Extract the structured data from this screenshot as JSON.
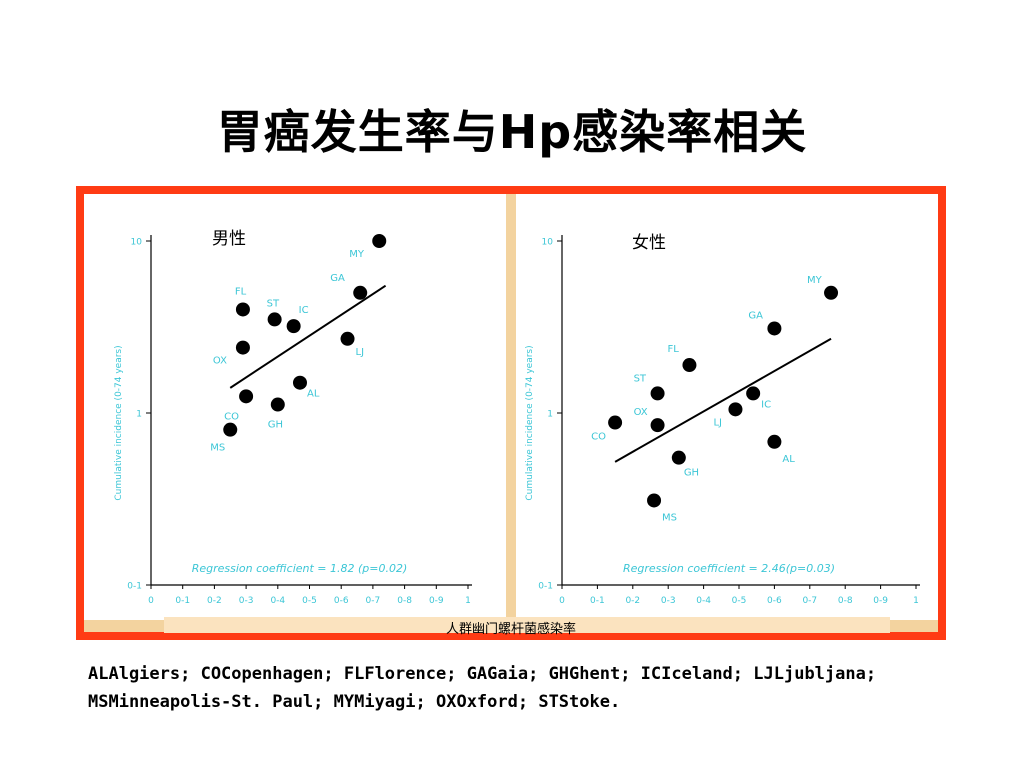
{
  "slide": {
    "title": "胃癌发生率与Hp感染率相关",
    "footnote_line1": "ALAlgiers; COCopenhagen; FLFlorence; GAGaia; GHGhent; ICIceland; LJLjubljana;",
    "footnote_line2": "MSMinneapolis-St. Paul; MYMiyagi; OXOxford; STStoke.",
    "xaxis_label": "人群幽门螺杆菌感染率"
  },
  "colors": {
    "frame": "#ff3b14",
    "frame_fill": "#f3d39f",
    "axis_text": "#3cc6d6",
    "points": "#000000"
  },
  "chart_data": [
    {
      "type": "scatter",
      "panel_label": "男性",
      "ylabel": "Cumulative incidence (0-74 years)",
      "y_scale": "log",
      "ylim": [
        0.1,
        10
      ],
      "xlim": [
        0,
        1
      ],
      "y_ticks": [
        "10",
        "1",
        "0-1"
      ],
      "x_ticks": [
        "0",
        "0-1",
        "0-2",
        "0-3",
        "0-4",
        "0-5",
        "0-6",
        "0-7",
        "0-8",
        "0-9",
        "1"
      ],
      "annotation": "Regression coefficient = 1.82 (p=0.02)",
      "points": [
        {
          "label": "MY",
          "x": 0.72,
          "y": 10.0
        },
        {
          "label": "GA",
          "x": 0.66,
          "y": 5.0
        },
        {
          "label": "FL",
          "x": 0.29,
          "y": 4.0
        },
        {
          "label": "ST",
          "x": 0.39,
          "y": 3.5
        },
        {
          "label": "IC",
          "x": 0.45,
          "y": 3.2
        },
        {
          "label": "LJ",
          "x": 0.62,
          "y": 2.7
        },
        {
          "label": "OX",
          "x": 0.29,
          "y": 2.4
        },
        {
          "label": "AL",
          "x": 0.47,
          "y": 1.5
        },
        {
          "label": "CO",
          "x": 0.3,
          "y": 1.25
        },
        {
          "label": "GH",
          "x": 0.4,
          "y": 1.12
        },
        {
          "label": "MS",
          "x": 0.25,
          "y": 0.8
        }
      ],
      "regression": {
        "x": [
          0.25,
          0.74
        ],
        "y": [
          1.4,
          5.5
        ]
      }
    },
    {
      "type": "scatter",
      "panel_label": "女性",
      "ylabel": "Cumulative incidence (0-74 years)",
      "y_scale": "log",
      "ylim": [
        0.1,
        10
      ],
      "xlim": [
        0,
        1
      ],
      "y_ticks": [
        "10",
        "1",
        "0-1"
      ],
      "x_ticks": [
        "0",
        "0-1",
        "0-2",
        "0-3",
        "0-4",
        "0-5",
        "0-6",
        "0-7",
        "0-8",
        "0-9",
        "1"
      ],
      "annotation": "Regression coefficient = 2.46(p=0.03)",
      "points": [
        {
          "label": "MY",
          "x": 0.76,
          "y": 5.0
        },
        {
          "label": "GA",
          "x": 0.6,
          "y": 3.1
        },
        {
          "label": "FL",
          "x": 0.36,
          "y": 1.9
        },
        {
          "label": "ST",
          "x": 0.27,
          "y": 1.3
        },
        {
          "label": "IC",
          "x": 0.54,
          "y": 1.3
        },
        {
          "label": "LJ",
          "x": 0.49,
          "y": 1.05
        },
        {
          "label": "CO",
          "x": 0.15,
          "y": 0.88
        },
        {
          "label": "OX",
          "x": 0.27,
          "y": 0.85
        },
        {
          "label": "AL",
          "x": 0.6,
          "y": 0.68
        },
        {
          "label": "GH",
          "x": 0.33,
          "y": 0.55
        },
        {
          "label": "MS",
          "x": 0.26,
          "y": 0.31
        }
      ],
      "regression": {
        "x": [
          0.15,
          0.76
        ],
        "y": [
          0.52,
          2.7
        ]
      }
    }
  ]
}
